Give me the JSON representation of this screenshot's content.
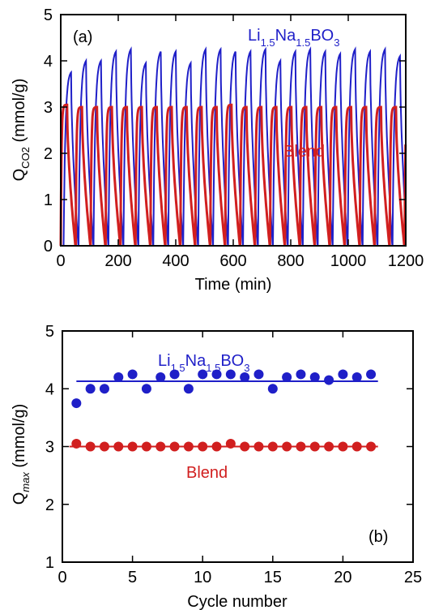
{
  "colors": {
    "li_series": "#1f1fc8",
    "blend_series": "#d11f1f",
    "axis": "#000000"
  },
  "chart_data": [
    {
      "type": "line",
      "panel_label": "(a)",
      "xlabel": "Time (min)",
      "ylabel": {
        "main": "Q",
        "sub": "CO2",
        "unit": " (mmol/g)"
      },
      "xlim": [
        0,
        1200
      ],
      "ylim": [
        0,
        5
      ],
      "x_ticks": [
        "0",
        "200",
        "400",
        "600",
        "800",
        "1000",
        "1200"
      ],
      "y_ticks": [
        "0",
        "1",
        "2",
        "3",
        "4",
        "5"
      ],
      "grid": false,
      "cycle_period_min": 52,
      "series": [
        {
          "name": {
            "main": "Li",
            "s1": "1.5",
            "m2": "Na",
            "s2": "1.5",
            "m3": "BO",
            "s3": "3"
          },
          "color_key": "li_series",
          "cycle_start_min": 10,
          "cycle_peaks": [
            3.75,
            4.0,
            4.0,
            4.2,
            4.25,
            3.95,
            4.2,
            4.2,
            3.95,
            4.25,
            4.25,
            4.2,
            4.2,
            4.25,
            4.0,
            4.2,
            4.25,
            4.2,
            4.15,
            4.25,
            4.2,
            4.25,
            4.1
          ]
        },
        {
          "name": "Blend",
          "color_key": "blend_series",
          "cycle_start_min": 0,
          "cycle_peaks": [
            3.05,
            3.0,
            3.0,
            3.0,
            3.0,
            3.0,
            3.0,
            3.0,
            3.0,
            3.0,
            3.0,
            3.05,
            3.0,
            3.0,
            3.0,
            3.0,
            3.0,
            3.0,
            3.0,
            3.0,
            3.0,
            3.0,
            3.0,
            3.0
          ]
        }
      ]
    },
    {
      "type": "scatter",
      "panel_label": "(b)",
      "xlabel": "Cycle number",
      "ylabel": {
        "main": "Q",
        "sub": "max",
        "unit": " (mmol/g)"
      },
      "xlim": [
        0,
        25
      ],
      "ylim": [
        1,
        5
      ],
      "x_ticks": [
        "0",
        "5",
        "10",
        "15",
        "20",
        "25"
      ],
      "y_ticks": [
        "1",
        "2",
        "3",
        "4",
        "5"
      ],
      "grid": false,
      "series": [
        {
          "name": {
            "main": "Li",
            "s1": "1.5",
            "m2": "Na",
            "s2": "1.5",
            "m3": "BO",
            "s3": "3"
          },
          "color_key": "li_series",
          "x": [
            1,
            2,
            3,
            4,
            5,
            6,
            7,
            8,
            9,
            10,
            11,
            12,
            13,
            14,
            15,
            16,
            17,
            18,
            19,
            20,
            21,
            22
          ],
          "y": [
            3.75,
            4.0,
            4.0,
            4.2,
            4.25,
            4.0,
            4.2,
            4.25,
            4.0,
            4.25,
            4.25,
            4.25,
            4.2,
            4.25,
            4.0,
            4.2,
            4.25,
            4.2,
            4.15,
            4.25,
            4.2,
            4.25
          ],
          "fit_y": 4.13,
          "fit_x": [
            1,
            22.5
          ]
        },
        {
          "name": "Blend",
          "color_key": "blend_series",
          "x": [
            1,
            2,
            3,
            4,
            5,
            6,
            7,
            8,
            9,
            10,
            11,
            12,
            13,
            14,
            15,
            16,
            17,
            18,
            19,
            20,
            21,
            22
          ],
          "y": [
            3.05,
            3.0,
            3.0,
            3.0,
            3.0,
            3.0,
            3.0,
            3.0,
            3.0,
            3.0,
            3.0,
            3.05,
            3.0,
            3.0,
            3.0,
            3.0,
            3.0,
            3.0,
            3.0,
            3.0,
            3.0,
            3.0
          ],
          "fit_y": 3.0,
          "fit_x": [
            0.5,
            22.5
          ]
        }
      ]
    }
  ]
}
